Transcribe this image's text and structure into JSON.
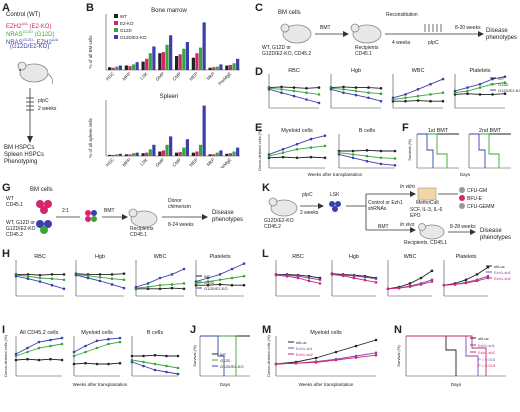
{
  "panelA": {
    "label": "A",
    "lines": [
      "Control (WT)",
      "EZH2",
      "(E2-KO)",
      "NRAS",
      "(G12D)",
      "NRAS",
      "EZH2",
      "(G12D/E2-KO)"
    ],
    "sup1": "Δ/Δ",
    "sup2": "G12D",
    "sup3": "G12D",
    "sup4": "Δ/Δ",
    "pipc": "pIpC",
    "weeks": "2 weeks",
    "out1": "BM HSPCs",
    "out2": "Spleen HSPCs",
    "out3": "Phenotyping"
  },
  "panelB": {
    "label": "B",
    "title_bm": "Bone marrow",
    "title_sp": "Spleen",
    "ylabel_bm": "% of all BM cells",
    "ylabel_sp": "% of all spleen cells",
    "categories": [
      "HSC",
      "MPP",
      "LSK",
      "GMP",
      "CMP",
      "MEP",
      "MkP",
      "PreMgE"
    ],
    "legend": [
      "WT",
      "E2-KO",
      "G12D",
      "G12D/E2-KO"
    ]
  },
  "panelC": {
    "label": "C",
    "bm": "BM cells",
    "donor": "WT, G12D or\nG12D/E2-KO, CD45.2",
    "bmt": "BMT",
    "recon": "Reconstitution",
    "weeks4": "4 weeks",
    "recip": "Recipients\nCD45.1",
    "pipc": "pIpC",
    "weeks8": "8-20 weeks",
    "disease": "Disease\nphenotypes"
  },
  "panelD": {
    "label": "D",
    "titles": [
      "RBC",
      "Hgb",
      "WBC",
      "Platelets"
    ],
    "legend": [
      "WT",
      "G12D",
      "G12D/E2-KO"
    ]
  },
  "panelE": {
    "label": "E",
    "titles": [
      "Myeloid cells",
      "B cells"
    ],
    "ylabel": "Donor-derived cells (%)",
    "xlabel": "Weeks after transplantation"
  },
  "panelF": {
    "label": "F",
    "titles": [
      "1st BMT",
      "2nd BMT"
    ],
    "ylabel": "Survival (%)",
    "xlabel": "Days"
  },
  "panelG": {
    "label": "G",
    "bm": "BM cells",
    "wt": "WT\nCD45.1",
    "donor": "WT, G12D or\nG12D/E2-KO\nCD45.2",
    "ratio": "2:1",
    "bmt": "BMT",
    "chim": "Donor\nchimerism",
    "recip": "Recipients\nCD45.1",
    "weeks": "8-24 weeks",
    "disease": "Disease\nphenotypes"
  },
  "panelH": {
    "label": "H",
    "titles": [
      "RBC",
      "Hgb",
      "WBC",
      "Platelets"
    ],
    "legend": [
      "WT",
      "G12D",
      "G12D/E2-KO"
    ]
  },
  "panelI": {
    "label": "I",
    "titles": [
      "All CD45.2 cells",
      "Myeloid cells",
      "B cells"
    ],
    "ylabel": "Donor-derived cells (%)",
    "xlabel": "Weeks after transplantation"
  },
  "panelJ": {
    "label": "J",
    "ylabel": "Survival (%)",
    "xlabel": "Days",
    "legend": [
      "WT",
      "G12D",
      "G12D/E2-KO"
    ]
  },
  "panelK": {
    "label": "K",
    "pipc": "pIpC",
    "weeks": "2 weeks",
    "lsk": "LSK",
    "control": "Control or Ezh1\nshRNAs",
    "invitro": "In vitro",
    "methocult": "MethoCult",
    "cfu": [
      "CFU-GM",
      "BFU-E",
      "CFU-GEMM"
    ],
    "cyto": "SCF, IL-3, IL-6\nEPO",
    "invivo": "In vivo",
    "bmt": "BMT",
    "weeks2": "8-28 weeks",
    "recip": "Recipients, CD45.1",
    "disease": "Disease\nphenotypes",
    "g12d": "G12D/E2-KO\nCD45.2"
  },
  "panelL": {
    "label": "L",
    "titles": [
      "RBC",
      "Hgb",
      "WBC",
      "Platelets"
    ],
    "legend": [
      "shLuc",
      "Ezh1-sh1",
      "Ezh1-sh2"
    ]
  },
  "panelM": {
    "label": "M",
    "title": "Myeloid cells",
    "ylabel": "Donor-derived cells (%)",
    "xlabel": "Weeks after transplantation",
    "legend": [
      "shLuc",
      "Ezh1-sh1",
      "Ezh1-sh2"
    ]
  },
  "panelN": {
    "label": "N",
    "ylabel": "Survival (%)",
    "xlabel": "Days",
    "legend": [
      "shLuc",
      "Ezh1-sh1",
      "Ezh1-sh2"
    ],
    "pvals": [
      "P = 0.015",
      "P = 0.015"
    ]
  },
  "colors": {
    "wt": "#222222",
    "e2ko": "#d6246e",
    "g12d": "#3aa63a",
    "dko": "#3b3fae",
    "sh1": "#7c4bb0",
    "sh2": "#d6246e"
  }
}
